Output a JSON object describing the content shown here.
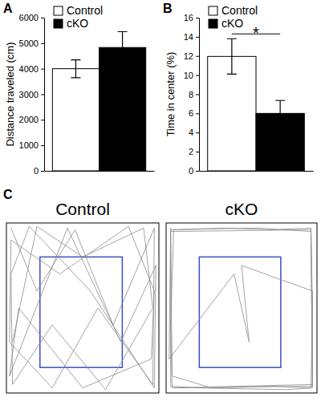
{
  "chart_data": [
    {
      "type": "bar",
      "title": "A",
      "y_label": "Distance traveled (cm)",
      "categories": [
        null
      ],
      "series": [
        {
          "name": "Control",
          "color": "#ffffff",
          "values": [
            4000
          ],
          "errors": [
            350
          ]
        },
        {
          "name": "cKO",
          "color": "#000000",
          "values": [
            4830
          ],
          "errors": [
            620
          ]
        }
      ],
      "ylim": [
        0,
        6000
      ],
      "yticks": [
        0,
        1000,
        2000,
        3000,
        4000,
        5000,
        6000
      ],
      "legend": "top-left"
    },
    {
      "type": "bar",
      "title": "B",
      "y_label": "Time in center (%)",
      "categories": [
        null
      ],
      "series": [
        {
          "name": "Control",
          "color": "#ffffff",
          "values": [
            11.95
          ],
          "errors": [
            1.85
          ]
        },
        {
          "name": "cKO",
          "color": "#000000",
          "values": [
            6.0
          ],
          "errors": [
            1.35
          ]
        }
      ],
      "ylim": [
        0,
        16
      ],
      "yticks": [
        0,
        2,
        4,
        6,
        8,
        10,
        12,
        14,
        16
      ],
      "legend": "top-left",
      "annotations": [
        "*"
      ]
    },
    {
      "type": "line",
      "title": "Control",
      "annotations": [
        "C"
      ],
      "color": "#8c8c8c",
      "x": [
        3,
        20,
        45,
        70,
        97,
        96,
        60,
        30,
        2,
        3,
        35,
        80,
        97,
        95,
        50,
        8,
        2,
        40,
        75,
        98,
        97,
        55,
        15,
        3,
        4,
        30,
        65,
        96,
        90,
        50,
        20,
        4
      ],
      "values": [
        97,
        60,
        96,
        40,
        97,
        5,
        50,
        3,
        30,
        90,
        70,
        98,
        60,
        20,
        3,
        50,
        10,
        97,
        30,
        75,
        3,
        60,
        98,
        70,
        5,
        40,
        2,
        50,
        97,
        80,
        98,
        30
      ],
      "xlim": [
        0,
        100
      ],
      "ylim": [
        0,
        100
      ],
      "tick_labels": false
    },
    {
      "type": "line",
      "title": "cKO",
      "color": "#8c8c8c",
      "x": [
        3,
        4,
        30,
        70,
        96,
        97,
        96,
        70,
        40,
        5,
        3,
        4,
        50,
        97,
        96,
        60,
        3,
        2,
        45,
        55,
        50,
        97,
        97,
        80,
        20,
        3,
        3,
        96,
        97,
        5
      ],
      "values": [
        97,
        10,
        3,
        4,
        3,
        50,
        97,
        96,
        97,
        96,
        40,
        3,
        4,
        5,
        95,
        97,
        96,
        20,
        70,
        30,
        75,
        60,
        3,
        2,
        3,
        4,
        95,
        96,
        4,
        3
      ],
      "xlim": [
        0,
        100
      ],
      "ylim": [
        0,
        100
      ],
      "tick_labels": false
    }
  ]
}
